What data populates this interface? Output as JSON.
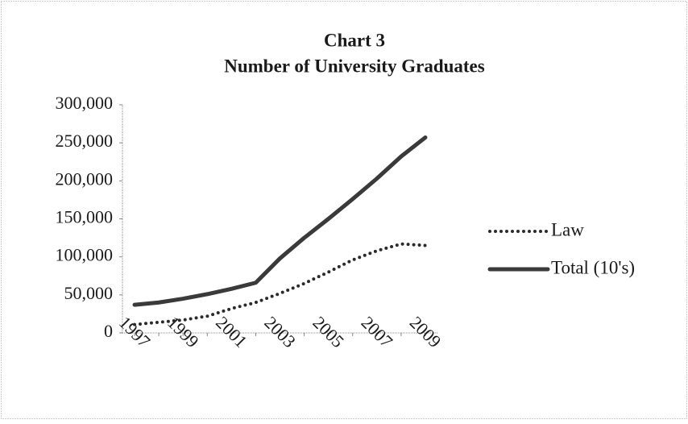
{
  "chart_data": {
    "type": "line",
    "title": "Chart 3",
    "subtitle": "Number of University Graduates",
    "categories": [
      "1997",
      null,
      "1999",
      null,
      "2001",
      null,
      "2003",
      null,
      "2005",
      null,
      "2007",
      null,
      "2009"
    ],
    "series": [
      {
        "name": "Law",
        "color": "#2a2a2a",
        "line_style": "dotted",
        "values": [
          11000,
          14000,
          17000,
          22000,
          32000,
          40000,
          52000,
          65000,
          80000,
          96000,
          108000,
          117000,
          115000
        ]
      },
      {
        "name": "Total (10's)",
        "color": "#3a3a3a",
        "line_style": "solid",
        "values": [
          37000,
          40000,
          45000,
          51000,
          58000,
          66000,
          98000,
          125000,
          150000,
          176000,
          203000,
          232000,
          257000
        ]
      }
    ],
    "ylim": [
      0,
      300000
    ],
    "yticks": [
      0,
      {
        "value": 50000,
        "label": "50,000"
      },
      {
        "value": 100000,
        "label": "100,000"
      },
      {
        "value": 150000,
        "label": "150,000"
      },
      {
        "value": 200000,
        "label": "200,000"
      },
      {
        "value": 250000,
        "label": "250,000"
      },
      {
        "value": 300000,
        "label": "300,000"
      }
    ],
    "legend": "right"
  }
}
